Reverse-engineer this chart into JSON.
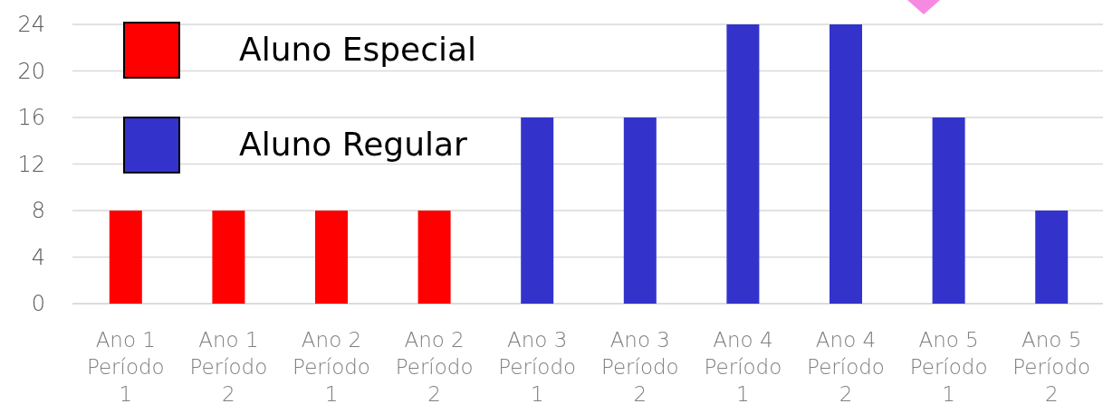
{
  "chart_data": {
    "type": "bar",
    "categories": [
      "Ano 1 Período 1",
      "Ano 1 Período 2",
      "Ano 2 Período 1",
      "Ano 2 Período 2",
      "Ano 3 Período 1",
      "Ano 3 Período 2",
      "Ano 4 Período 1",
      "Ano 4 Período 2",
      "Ano 5 Período 1",
      "Ano 5 Período 2"
    ],
    "series": [
      {
        "name": "Aluno Especial",
        "color": "#ff0000",
        "values": [
          8,
          8,
          8,
          8,
          null,
          null,
          null,
          null,
          null,
          null
        ]
      },
      {
        "name": "Aluno Regular",
        "color": "#3333cc",
        "values": [
          null,
          null,
          null,
          null,
          16,
          16,
          24,
          24,
          16,
          8
        ]
      }
    ],
    "ylim": [
      0,
      24
    ],
    "yticks": [
      0,
      4,
      8,
      12,
      16,
      20,
      24
    ],
    "grid": "y",
    "legend": "top left"
  }
}
